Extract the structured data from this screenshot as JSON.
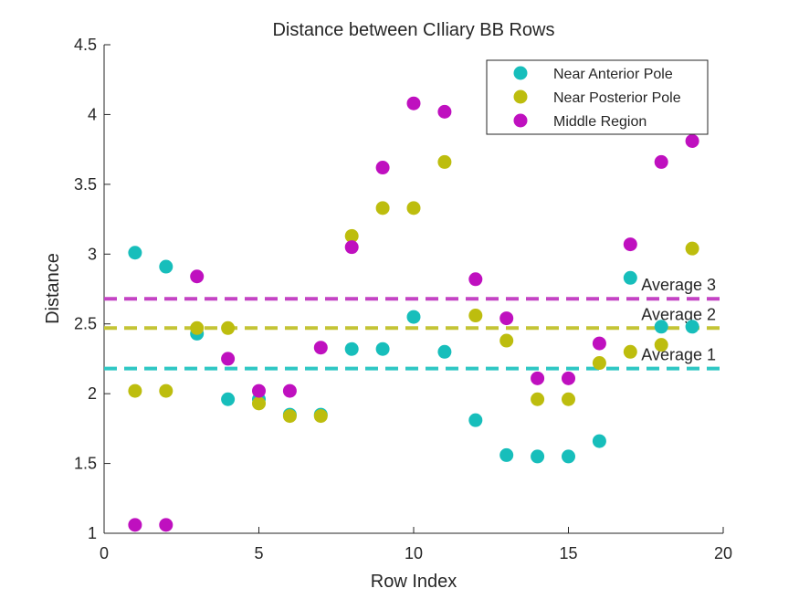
{
  "chart_data": {
    "type": "scatter",
    "title": "Distance between CIliary BB Rows",
    "xlabel": "Row Index",
    "ylabel": "Distance",
    "xlim": [
      0,
      20
    ],
    "ylim": [
      1,
      4.5
    ],
    "xticks": [
      "0",
      "5",
      "10",
      "15",
      "20"
    ],
    "yticks": [
      "1",
      "1.5",
      "2",
      "2.5",
      "3",
      "3.5",
      "4",
      "4.5"
    ],
    "grid": false,
    "legend_position": "top-right",
    "series": [
      {
        "name": "Near Anterior Pole",
        "color": "#17bebb",
        "x": [
          1,
          2,
          3,
          4,
          5,
          6,
          7,
          8,
          9,
          10,
          11,
          12,
          13,
          14,
          15,
          16,
          17,
          18,
          19
        ],
        "y": [
          3.01,
          2.91,
          2.43,
          1.96,
          1.96,
          1.85,
          1.85,
          2.32,
          2.32,
          2.55,
          2.3,
          1.81,
          1.56,
          1.55,
          1.55,
          1.66,
          2.83,
          2.48,
          2.48
        ]
      },
      {
        "name": "Near Posterior Pole",
        "color": "#bdbd0e",
        "x": [
          1,
          2,
          3,
          4,
          5,
          6,
          7,
          8,
          9,
          10,
          11,
          12,
          13,
          14,
          15,
          16,
          17,
          18,
          19
        ],
        "y": [
          2.02,
          2.02,
          2.47,
          2.47,
          1.93,
          1.84,
          1.84,
          3.13,
          3.33,
          3.33,
          3.66,
          2.56,
          2.38,
          1.96,
          1.96,
          2.22,
          2.3,
          2.35,
          3.04
        ]
      },
      {
        "name": "Middle Region",
        "color": "#bf10bf",
        "x": [
          1,
          2,
          3,
          4,
          5,
          6,
          7,
          8,
          9,
          10,
          11,
          12,
          13,
          14,
          15,
          16,
          17,
          18,
          19
        ],
        "y": [
          1.06,
          1.06,
          2.84,
          2.25,
          2.02,
          2.02,
          2.33,
          3.05,
          3.62,
          4.08,
          4.02,
          2.82,
          2.54,
          2.11,
          2.11,
          2.36,
          3.07,
          3.66,
          3.81
        ]
      }
    ],
    "reference_lines": [
      {
        "label": "Average 1",
        "value": 2.18,
        "color": "#2fc7c4",
        "text_color": "#17bebb"
      },
      {
        "label": "Average 2",
        "value": 2.47,
        "color": "#c4c435",
        "text_color": "#bdbd0e"
      },
      {
        "label": "Average 3",
        "value": 2.68,
        "color": "#c443c4",
        "text_color": "#bf10bf"
      }
    ]
  }
}
